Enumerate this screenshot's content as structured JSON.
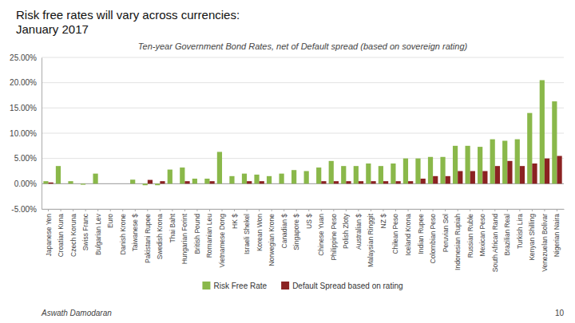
{
  "chart_data": {
    "type": "bar",
    "title": "Risk free rates will vary across currencies:\nJanuary 2017",
    "subtitle": "Ten-year Government Bond Rates, net of Default spread (based on sovereign rating)",
    "categories": [
      "Japanese Yen",
      "Croatian Kuna",
      "Czech Koruna",
      "Swiss Franc",
      "Bulgarian Lev",
      "Euro",
      "Danish Krone",
      "Taiwanese $",
      "Pakistani Rupee",
      "Swedish Krona",
      "Thai Baht",
      "Hungarian Forint",
      "British Pound",
      "Romanian Leu",
      "Vietnamese Dong",
      "HK $",
      "Israeli Shekel",
      "Korean Won",
      "Norwegian Krone",
      "Canadian $",
      "Singapore $",
      "US $",
      "Chinese Yuan",
      "Philippine Peso",
      "Polish Zloty",
      "Australian $",
      "Malaysian Ringgit",
      "NZ $",
      "Chilean Peso",
      "Iceland Krona",
      "Indian Rupee",
      "Colombian Peso",
      "Peruvian Sol",
      "Indonesian Rupiah",
      "Russian Ruble",
      "Mexican Peso",
      "South African Rand",
      "Brazilian Real",
      "Turkish Lira",
      "Kenyan Shilling",
      "Venezuelan Bolivar",
      "Nigerian Naira"
    ],
    "series": [
      {
        "name": "Risk Free Rate",
        "color": "#8ab84a",
        "values": [
          0.5,
          3.5,
          0.5,
          -0.2,
          2.0,
          0.0,
          0.0,
          0.8,
          -0.3,
          -0.3,
          2.8,
          3.2,
          1.0,
          1.0,
          6.3,
          1.5,
          2.0,
          1.8,
          1.5,
          2.0,
          2.7,
          2.5,
          3.2,
          4.5,
          3.5,
          3.5,
          4.0,
          3.5,
          4.0,
          5.0,
          5.0,
          5.3,
          5.3,
          7.5,
          7.5,
          7.3,
          8.8,
          8.5,
          8.8,
          14.0,
          20.5,
          16.3
        ]
      },
      {
        "name": "Default Spread based on rating",
        "color": "#8b2222",
        "values": [
          0.25,
          0.0,
          0.0,
          0.0,
          0.0,
          0.0,
          0.0,
          0.0,
          0.75,
          0.5,
          0.0,
          0.5,
          0.0,
          0.5,
          0.0,
          0.0,
          0.5,
          0.5,
          0.0,
          0.0,
          0.0,
          0.0,
          0.5,
          0.5,
          0.5,
          0.5,
          0.5,
          0.5,
          0.5,
          0.5,
          1.0,
          1.5,
          1.5,
          2.5,
          2.5,
          2.5,
          3.5,
          4.5,
          3.5,
          4.0,
          5.0,
          5.5
        ]
      }
    ],
    "ylim": [
      -5.0,
      25.0
    ],
    "yticks": [
      {
        "value": -5.0,
        "label": "-5.00%"
      },
      {
        "value": 0.0,
        "label": "0.00%"
      },
      {
        "value": 5.0,
        "label": "5.00%"
      },
      {
        "value": 10.0,
        "label": "10.00%"
      },
      {
        "value": 15.0,
        "label": "15.00%"
      },
      {
        "value": 20.0,
        "label": "20.00%"
      },
      {
        "value": 25.0,
        "label": "25.00%"
      }
    ],
    "grid": true,
    "legend": "bottom",
    "annotations": [
      "Aswath Damodaran",
      "10"
    ]
  }
}
